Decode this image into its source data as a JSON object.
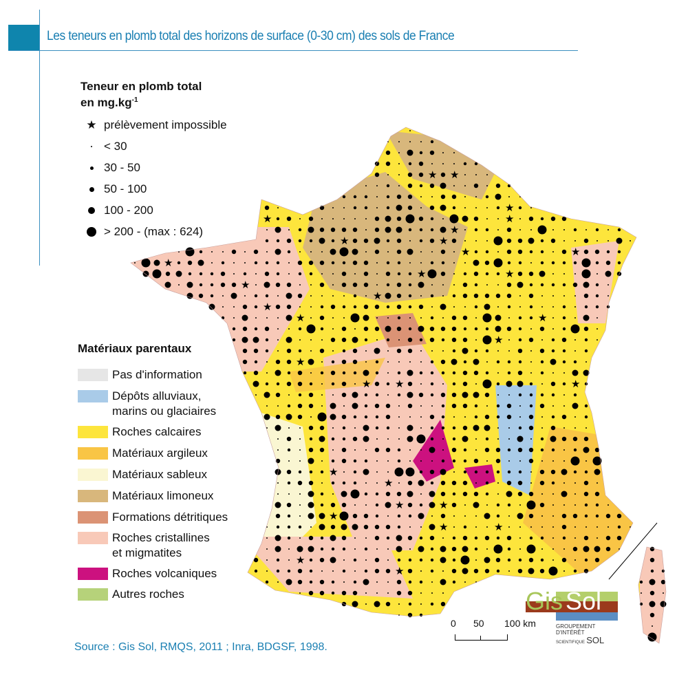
{
  "title": "Les teneurs en plomb total des horizons de surface (0-30 cm) des sols de France",
  "lead_legend": {
    "title_line1": "Teneur en plomb total",
    "title_line2": "en mg.kg",
    "title_sup": "-1",
    "items": [
      {
        "label": "prélèvement impossible",
        "symbol": "star"
      },
      {
        "label": "< 30",
        "symbol": "dot-xs"
      },
      {
        "label": "30 - 50",
        "symbol": "dot-s"
      },
      {
        "label": "50 - 100",
        "symbol": "dot-m"
      },
      {
        "label": "100 - 200",
        "symbol": "dot-l"
      },
      {
        "label": "> 200 - (max : 624)",
        "symbol": "dot-xl"
      }
    ]
  },
  "material_legend": {
    "title": "Matériaux parentaux",
    "items": [
      {
        "label": "Pas d'information",
        "color": "#e6e6e6"
      },
      {
        "label": "Dépôts alluviaux,",
        "label2": "marins ou glaciaires",
        "color": "#a9cbe8"
      },
      {
        "label": "Roches calcaires",
        "color": "#fde53c"
      },
      {
        "label": "Matériaux argileux",
        "color": "#f9c545"
      },
      {
        "label": "Matériaux sableux",
        "color": "#faf6d2"
      },
      {
        "label": "Matériaux limoneux",
        "color": "#d8b77c"
      },
      {
        "label": "Formations détritiques",
        "color": "#db9375"
      },
      {
        "label": "Roches cristallines",
        "label2": "et migmatites",
        "color": "#f8c9b8"
      },
      {
        "label": "Roches volcaniques",
        "color": "#cc117f"
      },
      {
        "label": "Autres roches",
        "color": "#b6d27a"
      }
    ]
  },
  "scale_bar": {
    "labels": [
      "0",
      "50",
      "100 km"
    ]
  },
  "logo": {
    "text1": "Gis",
    "text2": "Sol",
    "sub1": "GROUPEMENT",
    "sub2": "D'INTÉRÊT",
    "sub3": "SCIENTIFIQUE",
    "sub4": "SOL"
  },
  "source": "Source : Gis Sol, RMQS, 2011 ; Inra, BDGSF, 1998."
}
